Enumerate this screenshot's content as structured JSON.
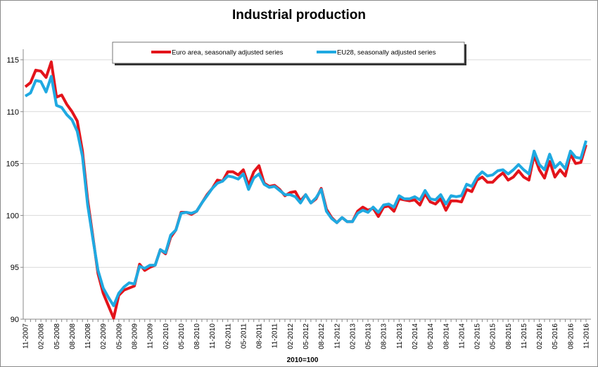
{
  "chart_data": {
    "type": "line",
    "title": "Industrial production",
    "xlabel": "2010=100",
    "ylabel": "",
    "ylim": [
      90,
      115
    ],
    "yticks": [
      90,
      95,
      100,
      105,
      110,
      115
    ],
    "grid": true,
    "legend_placement": "top-center",
    "x_start": "11-2007",
    "x_end": "11-2016",
    "x_tick_labels": [
      "11-2007",
      "02-2008",
      "05-2008",
      "08-2008",
      "11-2008",
      "02-2009",
      "05-2009",
      "08-2009",
      "11-2009",
      "02-2010",
      "05-2010",
      "08-2010",
      "11-2010",
      "02-2011",
      "05-2011",
      "08-2011",
      "11-2011",
      "02-2012",
      "05-2012",
      "08-2012",
      "11-2012",
      "02-2013",
      "05-2013",
      "08-2013",
      "11-2013",
      "02-2014",
      "05-2014",
      "08-2014",
      "11-2014",
      "02-2015",
      "05-2015",
      "08-2015",
      "11-2015",
      "02-2016",
      "05-2016",
      "08-2016",
      "11-2016"
    ],
    "series": [
      {
        "name": "Euro area, seasonally adjusted series",
        "color": "#e3141b",
        "values": [
          112.4,
          112.8,
          114.0,
          113.9,
          113.3,
          114.8,
          111.4,
          111.6,
          110.7,
          110.0,
          109.1,
          106.2,
          101.5,
          98.0,
          94.4,
          92.5,
          91.3,
          90.1,
          92.3,
          92.8,
          93.0,
          93.2,
          95.3,
          94.7,
          95.0,
          95.2,
          96.7,
          96.3,
          97.9,
          98.6,
          100.3,
          100.3,
          100.1,
          100.4,
          101.2,
          102.0,
          102.6,
          103.4,
          103.3,
          104.2,
          104.2,
          103.9,
          104.4,
          102.9,
          104.2,
          104.8,
          103.1,
          102.8,
          102.9,
          102.5,
          101.9,
          102.2,
          102.3,
          101.4,
          102.0,
          101.2,
          101.6,
          102.6,
          100.6,
          99.8,
          99.3,
          99.8,
          99.4,
          99.4,
          100.4,
          100.8,
          100.5,
          100.7,
          99.9,
          100.8,
          100.9,
          100.4,
          101.6,
          101.5,
          101.4,
          101.5,
          101.0,
          102.1,
          101.3,
          101.1,
          101.6,
          100.5,
          101.4,
          101.4,
          101.3,
          102.5,
          102.3,
          103.4,
          103.7,
          103.2,
          103.2,
          103.7,
          104.1,
          103.4,
          103.7,
          104.3,
          103.7,
          103.4,
          105.8,
          104.4,
          103.6,
          105.2,
          103.7,
          104.4,
          103.8,
          105.9,
          105.0,
          105.1,
          106.8
        ]
      },
      {
        "name": "EU28, seasonally adjusted series",
        "color": "#1fa9e1",
        "values": [
          111.5,
          111.8,
          113.0,
          112.9,
          111.9,
          113.4,
          110.6,
          110.4,
          109.7,
          109.2,
          108.1,
          105.7,
          101.0,
          97.8,
          94.7,
          93.0,
          92.1,
          91.3,
          92.5,
          93.1,
          93.5,
          93.4,
          95.1,
          94.9,
          95.2,
          95.2,
          96.7,
          96.4,
          98.1,
          98.6,
          100.2,
          100.3,
          100.2,
          100.4,
          101.2,
          101.9,
          102.6,
          103.1,
          103.3,
          103.8,
          103.7,
          103.5,
          104.0,
          102.5,
          103.6,
          104.0,
          103.0,
          102.7,
          102.8,
          102.4,
          102.0,
          102.0,
          101.8,
          101.2,
          102.0,
          101.2,
          101.7,
          102.5,
          100.4,
          99.7,
          99.3,
          99.8,
          99.4,
          99.4,
          100.2,
          100.5,
          100.3,
          100.8,
          100.3,
          101.0,
          101.1,
          100.8,
          101.9,
          101.6,
          101.6,
          101.8,
          101.5,
          102.4,
          101.6,
          101.5,
          102.0,
          101.1,
          101.9,
          101.8,
          101.9,
          103.0,
          102.8,
          103.7,
          104.2,
          103.8,
          103.9,
          104.3,
          104.4,
          104.0,
          104.4,
          104.9,
          104.4,
          104.0,
          106.2,
          104.9,
          104.4,
          105.9,
          104.6,
          105.1,
          104.5,
          106.2,
          105.6,
          105.5,
          107.2
        ]
      }
    ]
  }
}
